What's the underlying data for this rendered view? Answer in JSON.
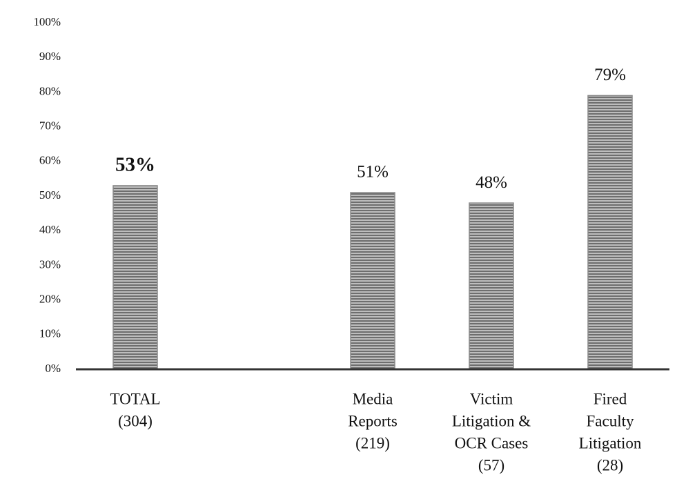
{
  "chart_data": {
    "type": "bar",
    "categories": [
      [
        "TOTAL",
        "(304)"
      ],
      null,
      [
        "Media",
        "Reports",
        "(219)"
      ],
      [
        "Victim",
        "Litigation &",
        "OCR Cases",
        "(57)"
      ],
      [
        "Fired",
        "Faculty",
        "Litigation",
        "(28)"
      ]
    ],
    "values": [
      53,
      null,
      51,
      48,
      79
    ],
    "value_labels": [
      "53%",
      null,
      "51%",
      "48%",
      "79%"
    ],
    "color": "#8a8a8a",
    "ylim": [
      0,
      100
    ],
    "yticks": [
      {
        "value": 0,
        "label": "0%"
      },
      {
        "value": 10,
        "label": "10%"
      },
      {
        "value": 20,
        "label": "20%"
      },
      {
        "value": 30,
        "label": "30%"
      },
      {
        "value": 40,
        "label": "40%"
      },
      {
        "value": 50,
        "label": "50%"
      },
      {
        "value": 60,
        "label": "60%"
      },
      {
        "value": 70,
        "label": "70%"
      },
      {
        "value": 80,
        "label": "80%"
      },
      {
        "value": 90,
        "label": "90%"
      },
      {
        "value": 100,
        "label": "100%"
      }
    ],
    "grid": false
  }
}
